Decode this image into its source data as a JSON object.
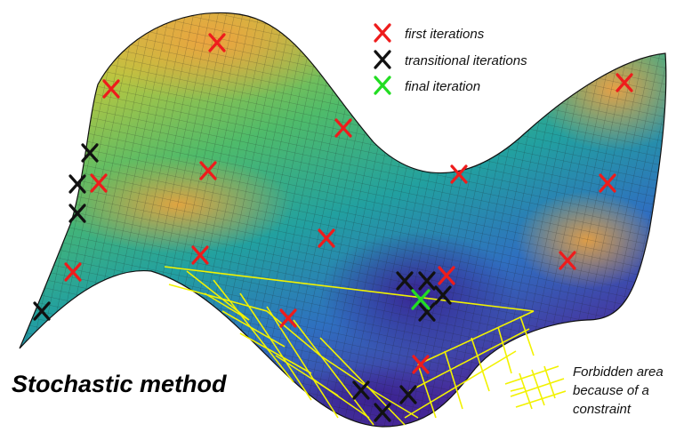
{
  "title": "Stochastic method",
  "legend": {
    "first": "first iterations",
    "transitional": "transitional iterations",
    "final": "final iteration"
  },
  "forbidden_note": {
    "line1": "Forbidden area",
    "line2": "because of a",
    "line3": "constraint"
  },
  "colors": {
    "first": "#ee1c1c",
    "transitional": "#111111",
    "final": "#22dd22",
    "forbidden": "#f2f200"
  }
}
